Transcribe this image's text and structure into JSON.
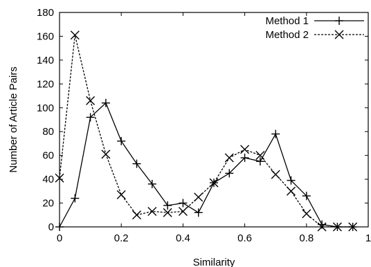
{
  "chart_data": {
    "type": "line",
    "title": "",
    "xlabel": "Similarity",
    "ylabel": "Number of Article Pairs",
    "xlim": [
      0,
      1
    ],
    "ylim": [
      0,
      180
    ],
    "xticks": [
      "0",
      "0.2",
      "0.4",
      "0.6",
      "0.8",
      "1"
    ],
    "yticks": [
      "0",
      "20",
      "40",
      "60",
      "80",
      "100",
      "120",
      "140",
      "160",
      "180"
    ],
    "grid": false,
    "legend": "top-right",
    "series": [
      {
        "name": "Method 1",
        "line_style": "solid",
        "marker": "plus",
        "color": "#000000",
        "x": [
          0,
          0.05,
          0.1,
          0.15,
          0.2,
          0.25,
          0.3,
          0.35,
          0.4,
          0.45,
          0.5,
          0.55,
          0.6,
          0.65,
          0.7,
          0.75,
          0.8,
          0.85,
          0.9,
          0.95
        ],
        "values": [
          0,
          24,
          92,
          104,
          72,
          53,
          36,
          18,
          20,
          12,
          37,
          45,
          58,
          55,
          78,
          39,
          26,
          2,
          0,
          0
        ]
      },
      {
        "name": "Method 2",
        "line_style": "dashed",
        "marker": "cross",
        "color": "#000000",
        "x": [
          0,
          0.05,
          0.1,
          0.15,
          0.2,
          0.25,
          0.3,
          0.35,
          0.4,
          0.45,
          0.5,
          0.55,
          0.6,
          0.65,
          0.7,
          0.75,
          0.8,
          0.85,
          0.9,
          0.95
        ],
        "values": [
          41,
          161,
          106,
          61,
          27,
          10,
          13,
          12,
          13,
          25,
          37,
          58,
          65,
          60,
          44,
          30,
          11,
          0,
          0,
          0
        ]
      }
    ]
  }
}
